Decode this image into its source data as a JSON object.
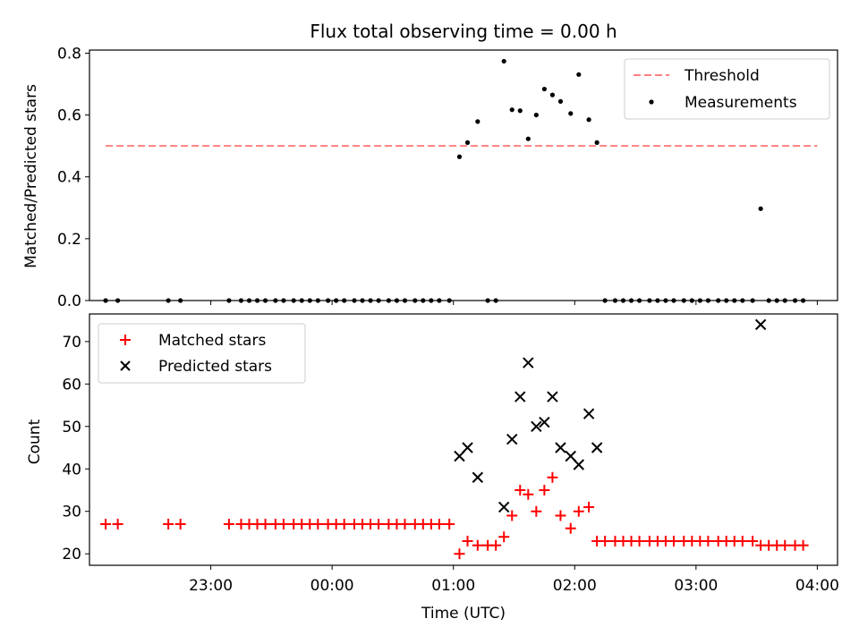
{
  "figure": {
    "title": "Flux total observing time = 0.00 h",
    "xlabel": "Time (UTC)"
  },
  "chart_data": [
    {
      "type": "scatter",
      "ylabel": "Matched/Predicted stars",
      "xlim": [
        "22:00",
        "04:10"
      ],
      "ylim": [
        0,
        0.81
      ],
      "yticks": [
        "0.0",
        "0.2",
        "0.4",
        "0.6",
        "0.8"
      ],
      "grid": false,
      "legend": {
        "position": "top-right",
        "entries": [
          "Threshold",
          "Measurements"
        ]
      },
      "threshold": {
        "name": "Threshold",
        "y": 0.5,
        "x_start": "22:08",
        "x_end": "04:00",
        "style": "dashed",
        "color": "#ff7f7f"
      },
      "series": [
        {
          "name": "Measurements",
          "color": "#000000",
          "points": [
            [
              "22:08",
              0
            ],
            [
              "22:14",
              0
            ],
            [
              "22:39",
              0
            ],
            [
              "22:45",
              0
            ],
            [
              "23:09",
              0
            ],
            [
              "23:15",
              0
            ],
            [
              "23:19",
              0
            ],
            [
              "23:23",
              0
            ],
            [
              "23:27",
              0
            ],
            [
              "23:32",
              0
            ],
            [
              "23:36",
              0
            ],
            [
              "23:41",
              0
            ],
            [
              "23:45",
              0
            ],
            [
              "23:49",
              0
            ],
            [
              "23:53",
              0
            ],
            [
              "23:58",
              0
            ],
            [
              "00:02",
              0
            ],
            [
              "00:06",
              0
            ],
            [
              "00:11",
              0
            ],
            [
              "00:15",
              0
            ],
            [
              "00:19",
              0
            ],
            [
              "00:23",
              0
            ],
            [
              "00:28",
              0
            ],
            [
              "00:32",
              0
            ],
            [
              "00:36",
              0
            ],
            [
              "00:41",
              0
            ],
            [
              "00:45",
              0
            ],
            [
              "00:49",
              0
            ],
            [
              "00:53",
              0
            ],
            [
              "00:58",
              0
            ],
            [
              "01:03",
              0.465
            ],
            [
              "01:07",
              0.511
            ],
            [
              "01:12",
              0.579
            ],
            [
              "01:17",
              0
            ],
            [
              "01:21",
              0
            ],
            [
              "01:25",
              0.774
            ],
            [
              "01:29",
              0.617
            ],
            [
              "01:33",
              0.614
            ],
            [
              "01:37",
              0.523
            ],
            [
              "01:41",
              0.6
            ],
            [
              "01:45",
              0.684
            ],
            [
              "01:49",
              0.665
            ],
            [
              "01:53",
              0.644
            ],
            [
              "01:58",
              0.605
            ],
            [
              "02:02",
              0.731
            ],
            [
              "02:07",
              0.585
            ],
            [
              "02:11",
              0.511
            ],
            [
              "02:15",
              0
            ],
            [
              "02:20",
              0
            ],
            [
              "02:24",
              0
            ],
            [
              "02:28",
              0
            ],
            [
              "02:32",
              0
            ],
            [
              "02:37",
              0
            ],
            [
              "02:41",
              0
            ],
            [
              "02:45",
              0
            ],
            [
              "02:49",
              0
            ],
            [
              "02:54",
              0
            ],
            [
              "02:58",
              0
            ],
            [
              "03:02",
              0
            ],
            [
              "03:06",
              0
            ],
            [
              "03:11",
              0
            ],
            [
              "03:15",
              0
            ],
            [
              "03:19",
              0
            ],
            [
              "03:23",
              0
            ],
            [
              "03:28",
              0
            ],
            [
              "03:32",
              0.297
            ],
            [
              "03:36",
              0
            ],
            [
              "03:40",
              0
            ],
            [
              "03:44",
              0
            ],
            [
              "03:49",
              0
            ],
            [
              "03:53",
              0
            ]
          ]
        }
      ]
    },
    {
      "type": "scatter",
      "ylabel": "Count",
      "xlim": [
        "22:00",
        "04:10"
      ],
      "ylim": [
        17.3,
        76.5
      ],
      "yticks": [
        "20",
        "30",
        "40",
        "50",
        "60",
        "70"
      ],
      "xticks": [
        "23:00",
        "00:00",
        "01:00",
        "02:00",
        "03:00",
        "04:00"
      ],
      "grid": false,
      "legend": {
        "position": "top-left",
        "entries": [
          "Matched stars",
          "Predicted stars"
        ]
      },
      "series": [
        {
          "name": "Matched stars",
          "marker": "plus",
          "color": "#ff0000",
          "points": [
            [
              "22:08",
              27
            ],
            [
              "22:14",
              27
            ],
            [
              "22:39",
              27
            ],
            [
              "22:45",
              27
            ],
            [
              "23:09",
              27
            ],
            [
              "23:15",
              27
            ],
            [
              "23:19",
              27
            ],
            [
              "23:23",
              27
            ],
            [
              "23:27",
              27
            ],
            [
              "23:32",
              27
            ],
            [
              "23:36",
              27
            ],
            [
              "23:41",
              27
            ],
            [
              "23:45",
              27
            ],
            [
              "23:49",
              27
            ],
            [
              "23:53",
              27
            ],
            [
              "23:58",
              27
            ],
            [
              "00:02",
              27
            ],
            [
              "00:06",
              27
            ],
            [
              "00:11",
              27
            ],
            [
              "00:15",
              27
            ],
            [
              "00:19",
              27
            ],
            [
              "00:23",
              27
            ],
            [
              "00:28",
              27
            ],
            [
              "00:32",
              27
            ],
            [
              "00:36",
              27
            ],
            [
              "00:41",
              27
            ],
            [
              "00:45",
              27
            ],
            [
              "00:49",
              27
            ],
            [
              "00:53",
              27
            ],
            [
              "00:58",
              27
            ],
            [
              "01:03",
              20
            ],
            [
              "01:07",
              23
            ],
            [
              "01:12",
              22
            ],
            [
              "01:17",
              22
            ],
            [
              "01:21",
              22
            ],
            [
              "01:25",
              24
            ],
            [
              "01:29",
              29
            ],
            [
              "01:33",
              35
            ],
            [
              "01:37",
              34
            ],
            [
              "01:41",
              30
            ],
            [
              "01:45",
              35
            ],
            [
              "01:49",
              38
            ],
            [
              "01:53",
              29
            ],
            [
              "01:58",
              26
            ],
            [
              "02:02",
              30
            ],
            [
              "02:07",
              31
            ],
            [
              "02:11",
              23
            ],
            [
              "02:15",
              23
            ],
            [
              "02:20",
              23
            ],
            [
              "02:24",
              23
            ],
            [
              "02:28",
              23
            ],
            [
              "02:32",
              23
            ],
            [
              "02:37",
              23
            ],
            [
              "02:41",
              23
            ],
            [
              "02:45",
              23
            ],
            [
              "02:49",
              23
            ],
            [
              "02:54",
              23
            ],
            [
              "02:58",
              23
            ],
            [
              "03:02",
              23
            ],
            [
              "03:06",
              23
            ],
            [
              "03:11",
              23
            ],
            [
              "03:15",
              23
            ],
            [
              "03:19",
              23
            ],
            [
              "03:23",
              23
            ],
            [
              "03:28",
              23
            ],
            [
              "03:32",
              22
            ],
            [
              "03:36",
              22
            ],
            [
              "03:40",
              22
            ],
            [
              "03:44",
              22
            ],
            [
              "03:49",
              22
            ],
            [
              "03:53",
              22
            ]
          ]
        },
        {
          "name": "Predicted stars",
          "marker": "x",
          "color": "#000000",
          "points": [
            [
              "01:03",
              43
            ],
            [
              "01:07",
              45
            ],
            [
              "01:12",
              38
            ],
            [
              "01:25",
              31
            ],
            [
              "01:29",
              47
            ],
            [
              "01:33",
              57
            ],
            [
              "01:37",
              65
            ],
            [
              "01:41",
              50
            ],
            [
              "01:45",
              51
            ],
            [
              "01:49",
              57
            ],
            [
              "01:53",
              45
            ],
            [
              "01:58",
              43
            ],
            [
              "02:02",
              41
            ],
            [
              "02:07",
              53
            ],
            [
              "02:11",
              45
            ],
            [
              "03:32",
              74
            ]
          ]
        }
      ]
    }
  ]
}
